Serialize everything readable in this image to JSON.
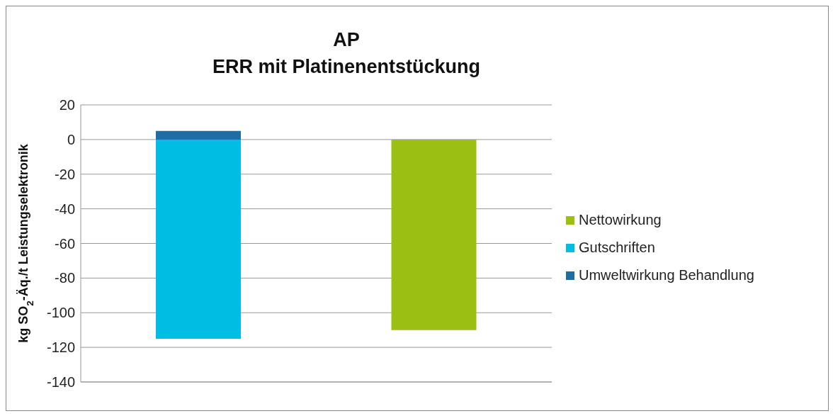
{
  "chart_data": {
    "type": "bar",
    "title": "AP\nERR mit Platinenentstückung",
    "ylabel": "kg SO$_{2}$-Äq./t Leistungselektronik",
    "categories": [
      null,
      null
    ],
    "stacked": true,
    "series": [
      {
        "name": "Umweltwirkung Behandlung",
        "color": "#1c6ea4",
        "values": [
          5,
          null
        ]
      },
      {
        "name": "Gutschriften",
        "color": "#00bde3",
        "values": [
          -115,
          null
        ]
      },
      {
        "name": "Nettowirkung",
        "color": "#9bbf13",
        "values": [
          null,
          -110
        ]
      }
    ],
    "ylim": [
      -140,
      20
    ],
    "yticks": [
      -140,
      -120,
      -100,
      -80,
      -60,
      -40,
      -20,
      0,
      20
    ],
    "grid": "y",
    "legend": "right"
  }
}
